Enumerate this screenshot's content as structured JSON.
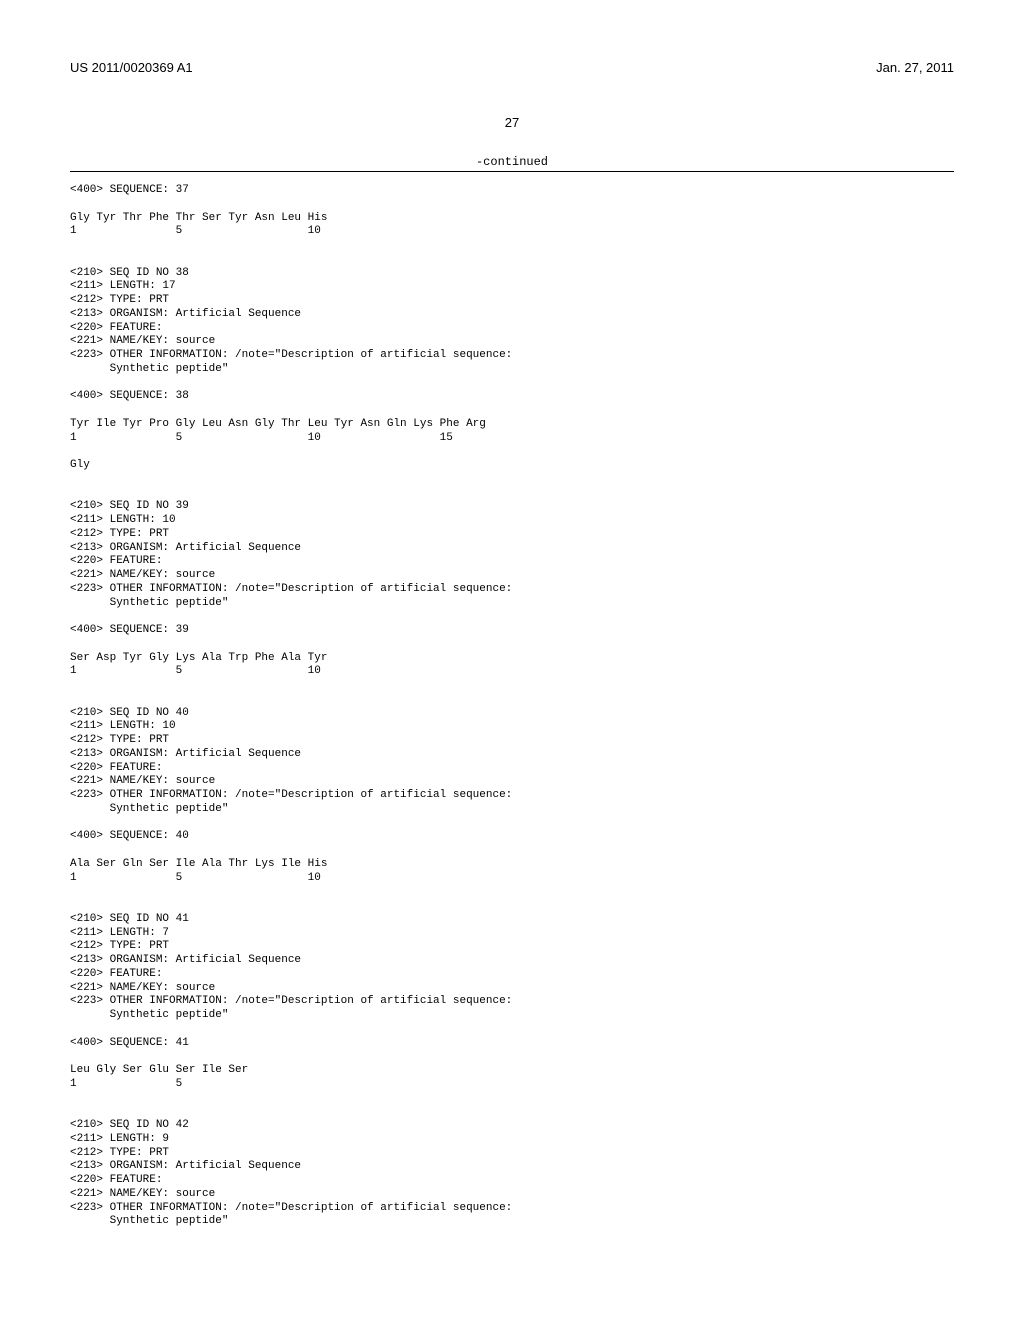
{
  "header": {
    "left": "US 2011/0020369 A1",
    "right": "Jan. 27, 2011"
  },
  "page_number": "27",
  "continued_label": "-continued",
  "sequences": {
    "seq37": {
      "header": "<400> SEQUENCE: 37",
      "residues": "Gly Tyr Thr Phe Thr Ser Tyr Asn Leu His",
      "numbers": "1               5                   10"
    },
    "seq38": {
      "meta": [
        "<210> SEQ ID NO 38",
        "<211> LENGTH: 17",
        "<212> TYPE: PRT",
        "<213> ORGANISM: Artificial Sequence",
        "<220> FEATURE:",
        "<221> NAME/KEY: source",
        "<223> OTHER INFORMATION: /note=\"Description of artificial sequence:",
        "      Synthetic peptide\""
      ],
      "header": "<400> SEQUENCE: 38",
      "residues": "Tyr Ile Tyr Pro Gly Leu Asn Gly Thr Leu Tyr Asn Gln Lys Phe Arg",
      "numbers": "1               5                   10                  15",
      "residues2": "Gly"
    },
    "seq39": {
      "meta": [
        "<210> SEQ ID NO 39",
        "<211> LENGTH: 10",
        "<212> TYPE: PRT",
        "<213> ORGANISM: Artificial Sequence",
        "<220> FEATURE:",
        "<221> NAME/KEY: source",
        "<223> OTHER INFORMATION: /note=\"Description of artificial sequence:",
        "      Synthetic peptide\""
      ],
      "header": "<400> SEQUENCE: 39",
      "residues": "Ser Asp Tyr Gly Lys Ala Trp Phe Ala Tyr",
      "numbers": "1               5                   10"
    },
    "seq40": {
      "meta": [
        "<210> SEQ ID NO 40",
        "<211> LENGTH: 10",
        "<212> TYPE: PRT",
        "<213> ORGANISM: Artificial Sequence",
        "<220> FEATURE:",
        "<221> NAME/KEY: source",
        "<223> OTHER INFORMATION: /note=\"Description of artificial sequence:",
        "      Synthetic peptide\""
      ],
      "header": "<400> SEQUENCE: 40",
      "residues": "Ala Ser Gln Ser Ile Ala Thr Lys Ile His",
      "numbers": "1               5                   10"
    },
    "seq41": {
      "meta": [
        "<210> SEQ ID NO 41",
        "<211> LENGTH: 7",
        "<212> TYPE: PRT",
        "<213> ORGANISM: Artificial Sequence",
        "<220> FEATURE:",
        "<221> NAME/KEY: source",
        "<223> OTHER INFORMATION: /note=\"Description of artificial sequence:",
        "      Synthetic peptide\""
      ],
      "header": "<400> SEQUENCE: 41",
      "residues": "Leu Gly Ser Glu Ser Ile Ser",
      "numbers": "1               5"
    },
    "seq42": {
      "meta": [
        "<210> SEQ ID NO 42",
        "<211> LENGTH: 9",
        "<212> TYPE: PRT",
        "<213> ORGANISM: Artificial Sequence",
        "<220> FEATURE:",
        "<221> NAME/KEY: source",
        "<223> OTHER INFORMATION: /note=\"Description of artificial sequence:",
        "      Synthetic peptide\""
      ]
    }
  }
}
